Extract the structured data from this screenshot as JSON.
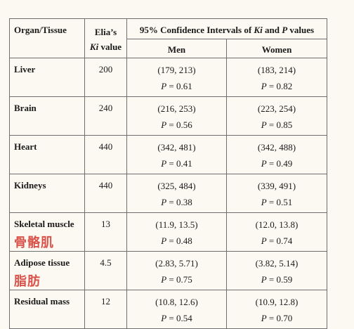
{
  "headers": {
    "organ": "Organ/Tissue",
    "ki_line1": "Elia’s",
    "ki_line2_italic": "Ki",
    "ki_line2_rest": " value",
    "ci_prefix": "95% Confidence Intervals of ",
    "ci_ki": "Ki",
    "ci_and": " and ",
    "ci_p": "P",
    "ci_suffix": " values",
    "men": "Men",
    "women": "Women"
  },
  "p_label": "P",
  "rows": [
    {
      "organ": "Liver",
      "note": "",
      "ki": "200",
      "men_ci": "(179, 213)",
      "men_p": " = 0.61",
      "women_ci": "(183, 214)",
      "women_p": " = 0.82"
    },
    {
      "organ": "Brain",
      "note": "",
      "ki": "240",
      "men_ci": "(216, 253)",
      "men_p": " = 0.56",
      "women_ci": "(223, 254)",
      "women_p": " = 0.85"
    },
    {
      "organ": "Heart",
      "note": "",
      "ki": "440",
      "men_ci": "(342, 481)",
      "men_p": " = 0.41",
      "women_ci": "(342, 488)",
      "women_p": " = 0.49"
    },
    {
      "organ": "Kidneys",
      "note": "",
      "ki": "440",
      "men_ci": "(325, 484)",
      "men_p": " = 0.38",
      "women_ci": "(339, 491)",
      "women_p": " = 0.51"
    },
    {
      "organ": "Skeletal muscle",
      "note": "骨骼肌",
      "ki": "13",
      "men_ci": "(11.9, 13.5)",
      "men_p": " = 0.48",
      "women_ci": "(12.0, 13.8)",
      "women_p": " = 0.74"
    },
    {
      "organ": "Adipose tissue",
      "note": "脂肪",
      "ki": "4.5",
      "men_ci": "(2.83, 5.71)",
      "men_p": " = 0.75",
      "women_ci": "(3.82, 5.14)",
      "women_p": " = 0.59"
    },
    {
      "organ": "Residual mass",
      "note": "",
      "ki": "12",
      "men_ci": "(10.8, 12.6)",
      "men_p": " = 0.54",
      "women_ci": "(10.9, 12.8)",
      "women_p": " = 0.70"
    }
  ]
}
